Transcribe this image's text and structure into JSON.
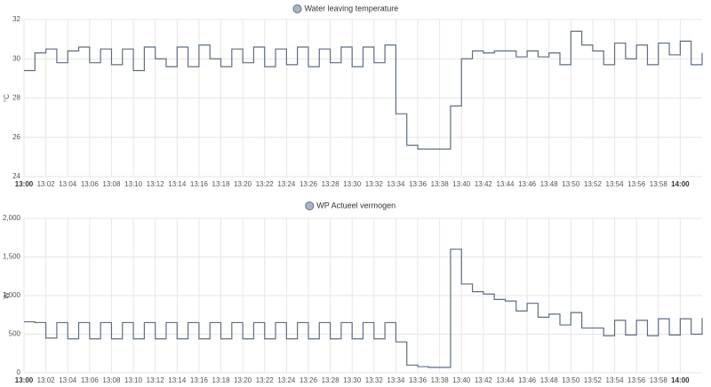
{
  "chart_data": [
    {
      "type": "line",
      "step": true,
      "legend": "Water leaving temperature",
      "ylabel": "°C",
      "color": "#5d6d86",
      "legend_color": "#a9b6c9",
      "grid": true,
      "x": [
        "13:00",
        "13:01",
        "13:02",
        "13:03",
        "13:04",
        "13:05",
        "13:06",
        "13:07",
        "13:08",
        "13:09",
        "13:10",
        "13:11",
        "13:12",
        "13:13",
        "13:14",
        "13:15",
        "13:16",
        "13:17",
        "13:18",
        "13:19",
        "13:20",
        "13:21",
        "13:22",
        "13:23",
        "13:24",
        "13:25",
        "13:26",
        "13:27",
        "13:28",
        "13:29",
        "13:30",
        "13:31",
        "13:32",
        "13:33",
        "13:34",
        "13:35",
        "13:36",
        "13:37",
        "13:38",
        "13:39",
        "13:40",
        "13:41",
        "13:42",
        "13:43",
        "13:44",
        "13:45",
        "13:46",
        "13:47",
        "13:48",
        "13:49",
        "13:50",
        "13:51",
        "13:52",
        "13:53",
        "13:54",
        "13:55",
        "13:56",
        "13:57",
        "13:58",
        "13:59",
        "14:00",
        "14:01",
        "14:02"
      ],
      "series": [
        {
          "name": "Water leaving temperature",
          "values": [
            29.4,
            30.3,
            30.5,
            29.8,
            30.4,
            30.6,
            29.8,
            30.5,
            29.7,
            30.5,
            29.4,
            30.6,
            30.0,
            29.6,
            30.6,
            29.6,
            30.7,
            30.0,
            29.6,
            30.5,
            29.8,
            30.6,
            29.6,
            30.5,
            29.7,
            30.6,
            29.6,
            30.5,
            29.8,
            30.6,
            29.6,
            30.6,
            29.8,
            30.7,
            27.2,
            25.6,
            25.4,
            25.4,
            25.4,
            27.6,
            30.0,
            30.4,
            30.3,
            30.4,
            30.4,
            30.1,
            30.4,
            30.1,
            30.3,
            29.7,
            31.4,
            30.7,
            30.4,
            29.7,
            30.8,
            30.0,
            30.7,
            29.7,
            30.8,
            30.2,
            30.9,
            29.7,
            30.3
          ]
        }
      ],
      "xlim": [
        "13:00",
        "14:02"
      ],
      "xticks": [
        "13:00",
        "13:02",
        "13:04",
        "13:06",
        "13:08",
        "13:10",
        "13:12",
        "13:14",
        "13:16",
        "13:18",
        "13:20",
        "13:22",
        "13:24",
        "13:26",
        "13:28",
        "13:30",
        "13:32",
        "13:34",
        "13:36",
        "13:38",
        "13:40",
        "13:42",
        "13:44",
        "13:46",
        "13:48",
        "13:50",
        "13:52",
        "13:54",
        "13:56",
        "13:58",
        "14:00"
      ],
      "ylim": [
        24,
        32
      ],
      "yticks": [
        24,
        26,
        28,
        30,
        32
      ]
    },
    {
      "type": "line",
      "step": true,
      "legend": "WP Actueel vermogen",
      "ylabel": "W",
      "color": "#5d6d86",
      "legend_color": "#a9b6c9",
      "grid": true,
      "x": [
        "13:00",
        "13:01",
        "13:02",
        "13:03",
        "13:04",
        "13:05",
        "13:06",
        "13:07",
        "13:08",
        "13:09",
        "13:10",
        "13:11",
        "13:12",
        "13:13",
        "13:14",
        "13:15",
        "13:16",
        "13:17",
        "13:18",
        "13:19",
        "13:20",
        "13:21",
        "13:22",
        "13:23",
        "13:24",
        "13:25",
        "13:26",
        "13:27",
        "13:28",
        "13:29",
        "13:30",
        "13:31",
        "13:32",
        "13:33",
        "13:34",
        "13:35",
        "13:36",
        "13:37",
        "13:38",
        "13:39",
        "13:40",
        "13:41",
        "13:42",
        "13:43",
        "13:44",
        "13:45",
        "13:46",
        "13:47",
        "13:48",
        "13:49",
        "13:50",
        "13:51",
        "13:52",
        "13:53",
        "13:54",
        "13:55",
        "13:56",
        "13:57",
        "13:58",
        "13:59",
        "14:00",
        "14:01",
        "14:02"
      ],
      "series": [
        {
          "name": "WP Actueel vermogen",
          "values": [
            660,
            650,
            450,
            650,
            440,
            650,
            440,
            650,
            440,
            650,
            440,
            650,
            440,
            650,
            440,
            650,
            440,
            650,
            440,
            650,
            440,
            650,
            440,
            650,
            440,
            650,
            440,
            650,
            440,
            650,
            440,
            650,
            440,
            650,
            400,
            100,
            80,
            70,
            70,
            1600,
            1150,
            1050,
            1020,
            950,
            930,
            800,
            900,
            720,
            760,
            620,
            780,
            580,
            580,
            480,
            680,
            490,
            680,
            480,
            700,
            490,
            700,
            500,
            710
          ]
        }
      ],
      "xlim": [
        "13:00",
        "14:02"
      ],
      "xticks": [
        "13:00",
        "13:02",
        "13:04",
        "13:06",
        "13:08",
        "13:10",
        "13:12",
        "13:14",
        "13:16",
        "13:18",
        "13:20",
        "13:22",
        "13:24",
        "13:26",
        "13:28",
        "13:30",
        "13:32",
        "13:34",
        "13:36",
        "13:38",
        "13:40",
        "13:42",
        "13:44",
        "13:46",
        "13:48",
        "13:50",
        "13:52",
        "13:54",
        "13:56",
        "13:58",
        "14:00"
      ],
      "ylim": [
        0,
        2000
      ],
      "yticks": [
        0,
        500,
        {
          "value": 1000,
          "label": "1,000"
        },
        {
          "value": 1500,
          "label": "1,500"
        },
        {
          "value": 2000,
          "label": "2,000"
        }
      ]
    }
  ]
}
